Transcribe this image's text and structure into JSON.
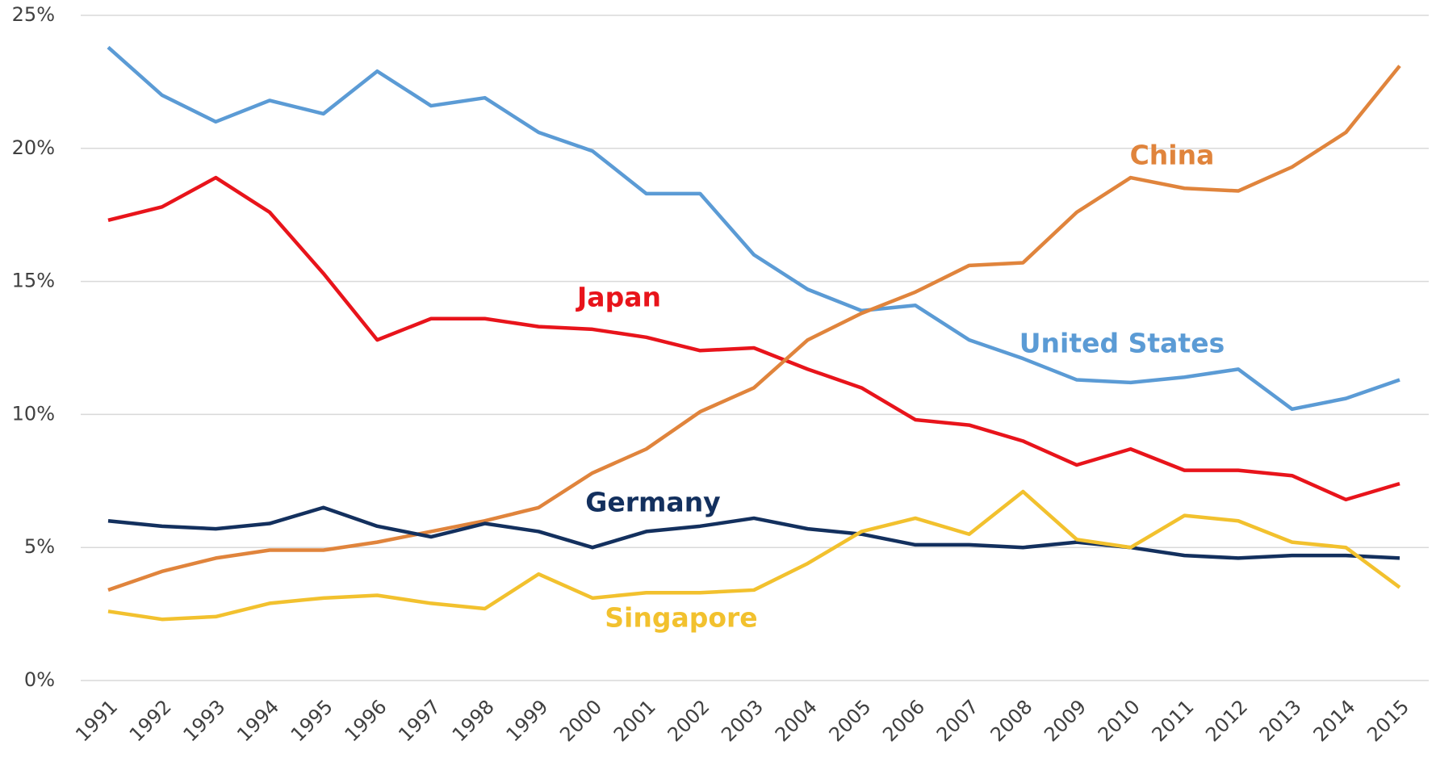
{
  "chart_data": {
    "type": "line",
    "categories": [
      "1991",
      "1992",
      "1993",
      "1994",
      "1995",
      "1996",
      "1997",
      "1998",
      "1999",
      "2000",
      "2001",
      "2002",
      "2003",
      "2004",
      "2005",
      "2006",
      "2007",
      "2008",
      "2009",
      "2010",
      "2011",
      "2012",
      "2013",
      "2014",
      "2015"
    ],
    "series": [
      {
        "name": "United States",
        "color": "#5b9bd5",
        "values": [
          23.8,
          22.0,
          21.0,
          21.8,
          21.3,
          22.9,
          21.6,
          21.9,
          20.6,
          19.9,
          18.3,
          18.3,
          16.0,
          14.7,
          13.9,
          14.1,
          12.8,
          12.1,
          11.3,
          11.2,
          11.4,
          11.7,
          10.2,
          10.6,
          11.3
        ]
      },
      {
        "name": "Japan",
        "color": "#e8141b",
        "values": [
          17.3,
          17.8,
          18.9,
          17.6,
          15.3,
          12.8,
          13.6,
          13.6,
          13.3,
          13.2,
          12.9,
          12.4,
          12.5,
          11.7,
          11.0,
          9.8,
          9.6,
          9.0,
          8.1,
          8.7,
          7.9,
          7.9,
          7.7,
          6.8,
          7.4
        ]
      },
      {
        "name": "China",
        "color": "#e0843c",
        "values": [
          3.4,
          4.1,
          4.6,
          4.9,
          4.9,
          5.2,
          5.6,
          6.0,
          6.5,
          7.8,
          8.7,
          10.1,
          11.0,
          12.8,
          13.8,
          14.6,
          15.6,
          15.7,
          17.6,
          18.9,
          18.5,
          18.4,
          19.3,
          20.6,
          23.1
        ]
      },
      {
        "name": "Germany",
        "color": "#13305e",
        "values": [
          6.0,
          5.8,
          5.7,
          5.9,
          6.5,
          5.8,
          5.4,
          5.9,
          5.6,
          5.0,
          5.6,
          5.8,
          6.1,
          5.7,
          5.5,
          5.1,
          5.1,
          5.0,
          5.2,
          5.0,
          4.7,
          4.6,
          4.7,
          4.7,
          4.6
        ]
      },
      {
        "name": "Singapore",
        "color": "#f2c12e",
        "values": [
          2.6,
          2.3,
          2.4,
          2.9,
          3.1,
          3.2,
          2.9,
          2.7,
          4.0,
          3.1,
          3.3,
          3.3,
          3.4,
          4.4,
          5.6,
          6.1,
          5.5,
          7.1,
          5.3,
          5.0,
          6.2,
          6.0,
          5.2,
          5.0,
          3.5
        ]
      }
    ],
    "ylim": [
      0,
      25
    ],
    "yticks": [
      {
        "value": 0,
        "label": "0%"
      },
      {
        "value": 5,
        "label": "5%"
      },
      {
        "value": 10,
        "label": "10%"
      },
      {
        "value": 15,
        "label": "15%"
      },
      {
        "value": 20,
        "label": "20%"
      },
      {
        "value": 25,
        "label": "25%"
      }
    ],
    "grid": true
  }
}
